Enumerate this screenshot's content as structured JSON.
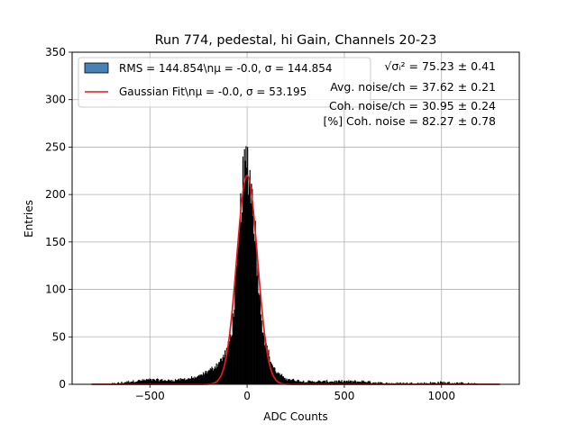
{
  "chart_data": {
    "type": "histogram",
    "title": "Run 774, pedestal, hi Gain, Channels 20-23",
    "xlabel": "ADC Counts",
    "ylabel": "Entries",
    "xlim": [
      -900,
      1400
    ],
    "ylim": [
      0,
      350
    ],
    "xticks": [
      -500,
      0,
      500,
      1000
    ],
    "xtick_labels": [
      "−500",
      "0",
      "500",
      "1000"
    ],
    "yticks": [
      0,
      50,
      100,
      150,
      200,
      250,
      300,
      350
    ],
    "ytick_labels": [
      "0",
      "50",
      "100",
      "150",
      "200",
      "250",
      "300",
      "350"
    ],
    "grid": true,
    "legend_position": "upper-left",
    "legend": [
      {
        "label": "RMS = 144.854\\nμ = -0.0, σ = 144.854",
        "kind": "bar",
        "color": "#4682b4"
      },
      {
        "label": "Gaussian Fit\\nμ = -0.0, σ = 53.195",
        "kind": "line",
        "color": "#e41a1c"
      }
    ],
    "annotations": [
      "√σᵢ² = 75.23 ± 0.41",
      "Avg. noise/ch = 37.62 ± 0.21",
      "Coh. noise/ch = 30.95 ± 0.24",
      "[%] Coh. noise = 82.27 ± 0.78"
    ],
    "histogram": {
      "x": [
        -800,
        -700,
        -600,
        -500,
        -400,
        -300,
        -250,
        -200,
        -175,
        -150,
        -125,
        -100,
        -90,
        -80,
        -70,
        -60,
        -50,
        -40,
        -30,
        -20,
        -10,
        0,
        10,
        20,
        30,
        40,
        50,
        60,
        70,
        80,
        90,
        100,
        110,
        120,
        130,
        140,
        150,
        175,
        200,
        250,
        300,
        400,
        500,
        600,
        700,
        800,
        900,
        1000,
        1100,
        1200,
        1300
      ],
      "y": [
        0,
        0,
        3,
        5,
        4,
        6,
        8,
        14,
        17,
        22,
        28,
        38,
        45,
        56,
        76,
        104,
        126,
        158,
        196,
        215,
        226,
        240,
        222,
        210,
        190,
        165,
        130,
        108,
        80,
        60,
        48,
        40,
        32,
        25,
        20,
        16,
        13,
        9,
        6,
        4,
        3,
        3,
        3,
        3,
        1,
        1,
        1,
        2,
        1,
        0,
        0
      ],
      "color": "#000000"
    },
    "gaussian_fit": {
      "mu": 0.0,
      "sigma": 53.195,
      "amplitude": 220,
      "x_range": [
        -800,
        1300
      ],
      "color": "#e41a1c"
    }
  }
}
